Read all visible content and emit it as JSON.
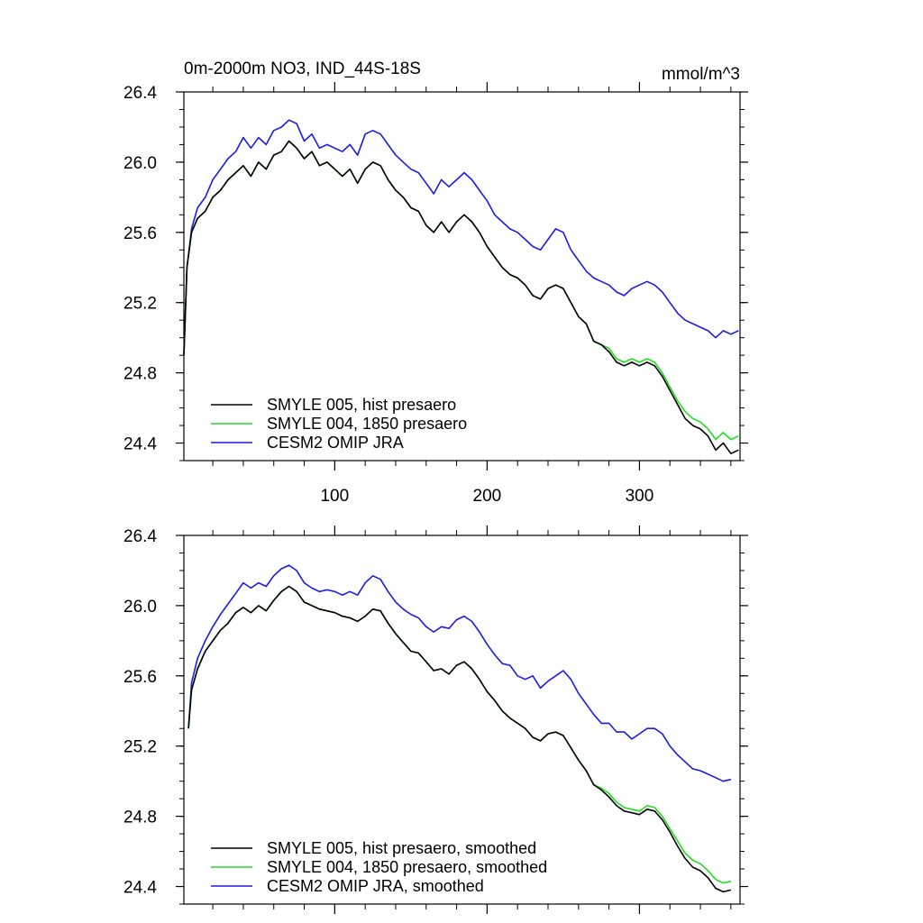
{
  "chart_data": [
    {
      "type": "line",
      "title": "0m-2000m NO3, IND_44S-18S",
      "units": "mmol/m^3",
      "xlim": [
        1,
        366
      ],
      "ylim": [
        24.3,
        26.4
      ],
      "xticks": [
        100,
        200,
        300
      ],
      "yticks": [
        24.4,
        24.8,
        25.2,
        25.6,
        26.0,
        26.4
      ],
      "ytick_labels": [
        "24.4",
        "24.8",
        "25.2",
        "25.6",
        "26.0",
        "26.4"
      ],
      "xtick_labels": [
        "100",
        "200",
        "300"
      ],
      "legend_position": "bottom-left",
      "series": [
        {
          "name": "SMYLE 005, hist presaero",
          "color": "#000000",
          "x": [
            1,
            3,
            6,
            10,
            15,
            20,
            25,
            30,
            35,
            40,
            45,
            50,
            55,
            60,
            65,
            70,
            75,
            80,
            85,
            90,
            95,
            100,
            105,
            110,
            115,
            120,
            125,
            130,
            135,
            140,
            145,
            150,
            155,
            160,
            165,
            170,
            175,
            180,
            185,
            190,
            195,
            200,
            205,
            210,
            215,
            220,
            225,
            230,
            235,
            240,
            245,
            250,
            255,
            260,
            265,
            270,
            275,
            280,
            285,
            290,
            295,
            300,
            305,
            310,
            315,
            320,
            325,
            330,
            335,
            340,
            345,
            350,
            355,
            360,
            365
          ],
          "y": [
            24.9,
            25.4,
            25.6,
            25.68,
            25.72,
            25.8,
            25.84,
            25.9,
            25.94,
            25.98,
            25.92,
            26.0,
            25.96,
            26.04,
            26.06,
            26.12,
            26.08,
            26.02,
            26.06,
            25.98,
            26.0,
            25.96,
            25.92,
            25.96,
            25.88,
            25.96,
            26.0,
            25.98,
            25.9,
            25.84,
            25.8,
            25.74,
            25.72,
            25.64,
            25.6,
            25.66,
            25.6,
            25.66,
            25.7,
            25.66,
            25.6,
            25.52,
            25.46,
            25.4,
            25.36,
            25.34,
            25.3,
            25.24,
            25.22,
            25.28,
            25.3,
            25.28,
            25.2,
            25.12,
            25.08,
            24.98,
            24.96,
            24.92,
            24.86,
            24.84,
            24.86,
            24.84,
            24.86,
            24.84,
            24.78,
            24.7,
            24.62,
            24.54,
            24.5,
            24.48,
            24.44,
            24.36,
            24.4,
            24.34,
            24.36
          ]
        },
        {
          "name": "SMYLE 004, 1850 presaero",
          "color": "#22dd22",
          "x": [
            1,
            3,
            6,
            10,
            15,
            20,
            25,
            30,
            35,
            40,
            45,
            50,
            55,
            60,
            65,
            70,
            75,
            80,
            85,
            90,
            95,
            100,
            105,
            110,
            115,
            120,
            125,
            130,
            135,
            140,
            145,
            150,
            155,
            160,
            165,
            170,
            175,
            180,
            185,
            190,
            195,
            200,
            205,
            210,
            215,
            220,
            225,
            230,
            235,
            240,
            245,
            250,
            255,
            260,
            265,
            270,
            275,
            280,
            285,
            290,
            295,
            300,
            305,
            310,
            315,
            320,
            325,
            330,
            335,
            340,
            345,
            350,
            355,
            360,
            365
          ],
          "y": [
            24.9,
            25.4,
            25.6,
            25.68,
            25.72,
            25.8,
            25.84,
            25.9,
            25.94,
            25.98,
            25.92,
            26.0,
            25.96,
            26.04,
            26.06,
            26.12,
            26.08,
            26.02,
            26.06,
            25.98,
            26.0,
            25.96,
            25.92,
            25.96,
            25.88,
            25.96,
            26.0,
            25.98,
            25.9,
            25.84,
            25.8,
            25.74,
            25.72,
            25.64,
            25.6,
            25.66,
            25.6,
            25.66,
            25.7,
            25.66,
            25.6,
            25.52,
            25.46,
            25.4,
            25.36,
            25.34,
            25.3,
            25.24,
            25.22,
            25.28,
            25.3,
            25.28,
            25.2,
            25.12,
            25.08,
            24.98,
            24.96,
            24.94,
            24.88,
            24.86,
            24.88,
            24.86,
            24.88,
            24.86,
            24.8,
            24.72,
            24.64,
            24.58,
            24.54,
            24.52,
            24.48,
            24.42,
            24.46,
            24.42,
            24.44
          ]
        },
        {
          "name": "CESM2 OMIP JRA",
          "color": "#1a1aee",
          "x": [
            1,
            3,
            6,
            10,
            15,
            20,
            25,
            30,
            35,
            40,
            45,
            50,
            55,
            60,
            65,
            70,
            75,
            80,
            85,
            90,
            95,
            100,
            105,
            110,
            115,
            120,
            125,
            130,
            135,
            140,
            145,
            150,
            155,
            160,
            165,
            170,
            175,
            180,
            185,
            190,
            195,
            200,
            205,
            210,
            215,
            220,
            225,
            230,
            235,
            240,
            245,
            250,
            255,
            260,
            265,
            270,
            275,
            280,
            285,
            290,
            295,
            300,
            305,
            310,
            315,
            320,
            325,
            330,
            335,
            340,
            345,
            350,
            355,
            360,
            365
          ],
          "y": [
            24.9,
            25.4,
            25.62,
            25.74,
            25.8,
            25.9,
            25.96,
            26.02,
            26.06,
            26.14,
            26.08,
            26.14,
            26.1,
            26.18,
            26.2,
            26.24,
            26.22,
            26.12,
            26.16,
            26.08,
            26.1,
            26.08,
            26.06,
            26.1,
            26.04,
            26.16,
            26.18,
            26.16,
            26.1,
            26.04,
            26.0,
            25.96,
            25.94,
            25.88,
            25.82,
            25.9,
            25.86,
            25.9,
            25.94,
            25.9,
            25.84,
            25.78,
            25.7,
            25.66,
            25.62,
            25.6,
            25.56,
            25.52,
            25.5,
            25.56,
            25.62,
            25.6,
            25.5,
            25.44,
            25.38,
            25.34,
            25.32,
            25.3,
            25.26,
            25.24,
            25.28,
            25.3,
            25.32,
            25.3,
            25.26,
            25.2,
            25.14,
            25.1,
            25.08,
            25.06,
            25.04,
            25.0,
            25.04,
            25.02,
            25.04
          ]
        }
      ]
    },
    {
      "type": "line",
      "title": "",
      "xlim": [
        1,
        366
      ],
      "ylim": [
        24.3,
        26.4
      ],
      "xticks": [
        100,
        200,
        300
      ],
      "yticks": [
        24.4,
        24.8,
        25.2,
        25.6,
        26.0,
        26.4
      ],
      "ytick_labels": [
        "24.4",
        "24.8",
        "25.2",
        "25.6",
        "26.0",
        "26.4"
      ],
      "legend_position": "bottom-left",
      "series": [
        {
          "name": "SMYLE 005, hist presaero, smoothed",
          "color": "#000000",
          "x": [
            4,
            6,
            10,
            15,
            20,
            25,
            30,
            35,
            40,
            45,
            50,
            55,
            60,
            65,
            70,
            75,
            80,
            85,
            90,
            95,
            100,
            105,
            110,
            115,
            120,
            125,
            130,
            135,
            140,
            145,
            150,
            155,
            160,
            165,
            170,
            175,
            180,
            185,
            190,
            195,
            200,
            205,
            210,
            215,
            220,
            225,
            230,
            235,
            240,
            245,
            250,
            255,
            260,
            265,
            270,
            275,
            280,
            285,
            290,
            295,
            300,
            305,
            310,
            315,
            320,
            325,
            330,
            335,
            340,
            345,
            350,
            355,
            360
          ],
          "y": [
            25.3,
            25.52,
            25.64,
            25.74,
            25.8,
            25.86,
            25.9,
            25.96,
            25.99,
            25.96,
            26.0,
            25.97,
            26.03,
            26.08,
            26.11,
            26.08,
            26.02,
            26.0,
            25.98,
            25.97,
            25.96,
            25.94,
            25.93,
            25.91,
            25.94,
            25.98,
            25.97,
            25.9,
            25.84,
            25.79,
            25.74,
            25.73,
            25.68,
            25.63,
            25.64,
            25.61,
            25.66,
            25.68,
            25.64,
            25.58,
            25.51,
            25.46,
            25.4,
            25.36,
            25.33,
            25.3,
            25.25,
            25.23,
            25.27,
            25.28,
            25.26,
            25.19,
            25.12,
            25.06,
            24.98,
            24.95,
            24.91,
            24.86,
            24.83,
            24.82,
            24.81,
            24.84,
            24.83,
            24.78,
            24.71,
            24.63,
            24.56,
            24.51,
            24.49,
            24.45,
            24.39,
            24.37,
            24.38
          ]
        },
        {
          "name": "SMYLE 004, 1850 presaero, smoothed",
          "color": "#22dd22",
          "x": [
            4,
            6,
            10,
            15,
            20,
            25,
            30,
            35,
            40,
            45,
            50,
            55,
            60,
            65,
            70,
            75,
            80,
            85,
            90,
            95,
            100,
            105,
            110,
            115,
            120,
            125,
            130,
            135,
            140,
            145,
            150,
            155,
            160,
            165,
            170,
            175,
            180,
            185,
            190,
            195,
            200,
            205,
            210,
            215,
            220,
            225,
            230,
            235,
            240,
            245,
            250,
            255,
            260,
            265,
            270,
            275,
            280,
            285,
            290,
            295,
            300,
            305,
            310,
            315,
            320,
            325,
            330,
            335,
            340,
            345,
            350,
            355,
            360
          ],
          "y": [
            25.3,
            25.52,
            25.64,
            25.74,
            25.8,
            25.86,
            25.9,
            25.96,
            25.99,
            25.96,
            26.0,
            25.97,
            26.03,
            26.08,
            26.11,
            26.08,
            26.02,
            26.0,
            25.98,
            25.97,
            25.96,
            25.94,
            25.93,
            25.91,
            25.94,
            25.98,
            25.97,
            25.9,
            25.84,
            25.79,
            25.74,
            25.73,
            25.68,
            25.63,
            25.64,
            25.61,
            25.66,
            25.68,
            25.64,
            25.58,
            25.51,
            25.46,
            25.4,
            25.36,
            25.33,
            25.3,
            25.25,
            25.23,
            25.27,
            25.28,
            25.26,
            25.19,
            25.12,
            25.06,
            24.98,
            24.96,
            24.93,
            24.88,
            24.85,
            24.84,
            24.83,
            24.86,
            24.85,
            24.8,
            24.73,
            24.66,
            24.59,
            24.55,
            24.53,
            24.49,
            24.44,
            24.42,
            24.43
          ]
        },
        {
          "name": "CESM2 OMIP JRA, smoothed",
          "color": "#1a1aee",
          "x": [
            4,
            6,
            10,
            15,
            20,
            25,
            30,
            35,
            40,
            45,
            50,
            55,
            60,
            65,
            70,
            75,
            80,
            85,
            90,
            95,
            100,
            105,
            110,
            115,
            120,
            125,
            130,
            135,
            140,
            145,
            150,
            155,
            160,
            165,
            170,
            175,
            180,
            185,
            190,
            195,
            200,
            205,
            210,
            215,
            220,
            225,
            230,
            235,
            240,
            245,
            250,
            255,
            260,
            265,
            270,
            275,
            280,
            285,
            290,
            295,
            300,
            305,
            310,
            315,
            320,
            325,
            330,
            335,
            340,
            345,
            350,
            355,
            360
          ],
          "y": [
            25.3,
            25.56,
            25.7,
            25.8,
            25.88,
            25.95,
            26.01,
            26.07,
            26.13,
            26.1,
            26.13,
            26.11,
            26.17,
            26.21,
            26.23,
            26.2,
            26.13,
            26.1,
            26.08,
            26.09,
            26.08,
            26.06,
            26.08,
            26.06,
            26.13,
            26.17,
            26.15,
            26.08,
            26.02,
            25.98,
            25.95,
            25.93,
            25.88,
            25.85,
            25.88,
            25.87,
            25.92,
            25.94,
            25.91,
            25.85,
            25.78,
            25.72,
            25.67,
            25.66,
            25.6,
            25.58,
            25.6,
            25.53,
            25.57,
            25.6,
            25.63,
            25.58,
            25.5,
            25.44,
            25.38,
            25.33,
            25.33,
            25.28,
            25.28,
            25.24,
            25.27,
            25.3,
            25.3,
            25.27,
            25.2,
            25.15,
            25.11,
            25.07,
            25.06,
            25.04,
            25.02,
            25.0,
            25.01
          ]
        }
      ]
    }
  ]
}
